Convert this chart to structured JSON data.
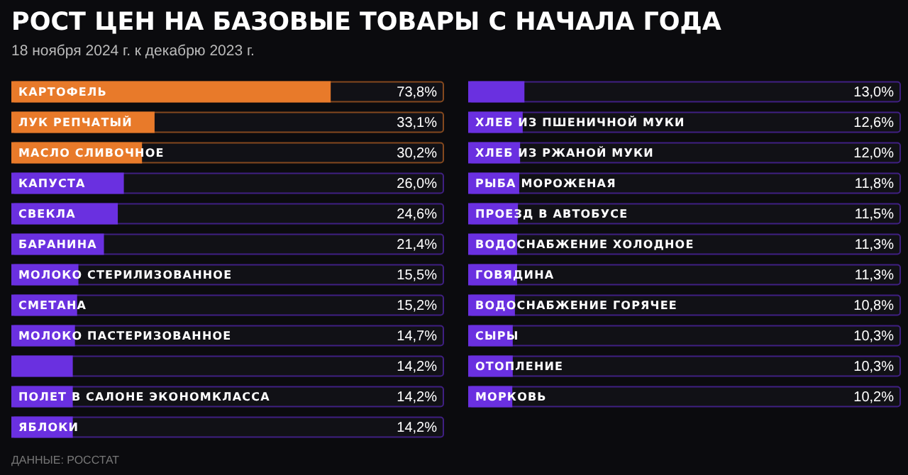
{
  "chart_data": [
    {
      "type": "bar",
      "orientation": "horizontal",
      "title": "РОСТ ЦЕН НА БАЗОВЫЕ ТОВАРЫ С НАЧАЛА ГОДА",
      "subtitle": "18 ноября 2024 г. к декабрю 2023 г.",
      "annotations": [
        "ДАННЫЕ: РОССТАТ"
      ],
      "categories": [
        "КАРТОФЕЛЬ",
        "ЛУК РЕПЧАТЫЙ",
        "МАСЛО СЛИВОЧНОЕ",
        "КАПУСТА",
        "СВЕКЛА",
        "БАРАНИНА",
        "МОЛОКО СТЕРИЛИЗОВАННОЕ",
        "СМЕТАНА",
        "МОЛОКО ПАСТЕРИЗОВАННОЕ",
        null,
        "ПОЛЕТ В САЛОНЕ ЭКОНОМКЛАССА",
        "ЯБЛОКИ"
      ],
      "values": [
        73.8,
        33.1,
        30.2,
        26.0,
        24.6,
        21.4,
        15.5,
        15.2,
        14.7,
        14.2,
        14.2,
        14.2
      ],
      "value_labels": [
        "73,8%",
        "33,1%",
        "30,2%",
        "26,0%",
        "24,6%",
        "21,4%",
        "15,5%",
        "15,2%",
        "14,7%",
        "14,2%",
        "14,2%",
        "14,2%"
      ],
      "colors": [
        "#e87a2a",
        "#e87a2a",
        "#e87a2a",
        "#6a30e0",
        "#6a30e0",
        "#6a30e0",
        "#6a30e0",
        "#6a30e0",
        "#6a30e0",
        "#6a30e0",
        "#6a30e0",
        "#6a30e0"
      ],
      "xlim": [
        0,
        100
      ],
      "tick_labels": false,
      "grid": false,
      "legend": false
    },
    {
      "type": "bar",
      "orientation": "horizontal",
      "categories": [
        null,
        "ХЛЕБ ИЗ ПШЕНИЧНОЙ МУКИ",
        "ХЛЕБ ИЗ РЖАНОЙ МУКИ",
        "РЫБА МОРОЖЕНАЯ",
        "ПРОЕЗД В АВТОБУСЕ",
        "ВОДОСНАБЖЕНИЕ ХОЛОДНОЕ",
        "ГОВЯДИНА",
        "ВОДОСНАБЖЕНИЕ ГОРЯЧЕЕ",
        "СЫРЫ",
        "ОТОПЛЕНИЕ",
        "МОРКОВЬ"
      ],
      "values": [
        13.0,
        12.6,
        12.0,
        11.8,
        11.5,
        11.3,
        11.3,
        10.8,
        10.3,
        10.3,
        10.2
      ],
      "value_labels": [
        "13,0%",
        "12,6%",
        "12,0%",
        "11,8%",
        "11,5%",
        "11,3%",
        "11,3%",
        "10,8%",
        "10,3%",
        "10,3%",
        "10,2%"
      ],
      "colors": [
        "#6a30e0",
        "#6a30e0",
        "#6a30e0",
        "#6a30e0",
        "#6a30e0",
        "#6a30e0",
        "#6a30e0",
        "#6a30e0",
        "#6a30e0",
        "#6a30e0",
        "#6a30e0"
      ],
      "xlim": [
        0,
        100
      ],
      "tick_labels": false,
      "grid": false,
      "legend": false
    }
  ]
}
